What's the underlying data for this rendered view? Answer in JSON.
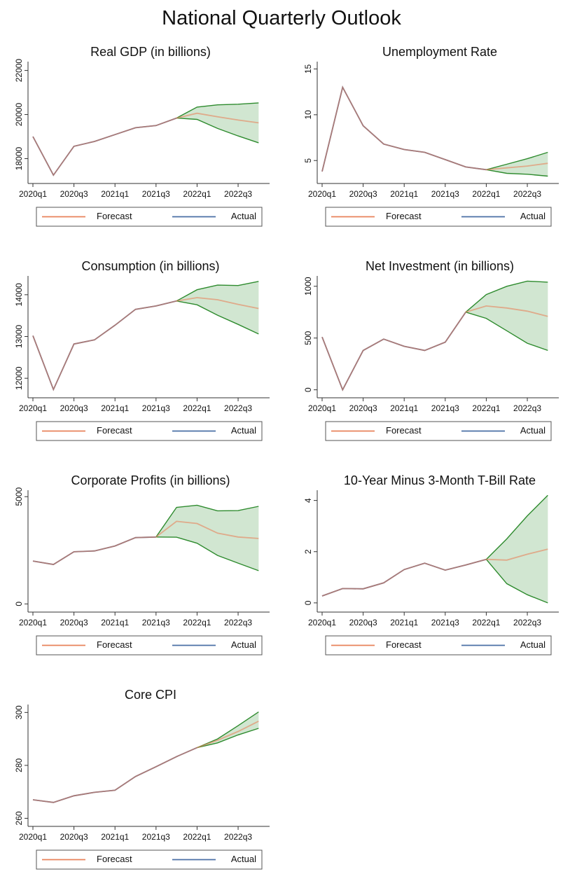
{
  "title": "National Quarterly Outlook",
  "chart_data": [
    {
      "type": "line",
      "title": "Real GDP (in billions)",
      "categories": [
        "2020q1",
        null,
        "2020q3",
        null,
        "2021q1",
        null,
        "2021q3",
        null,
        "2022q1",
        null,
        "2022q3",
        null
      ],
      "series": [
        {
          "name": "Forecast",
          "color": "#e8825a",
          "values": [
            19000,
            17250,
            18560,
            18780,
            19090,
            19400,
            19500,
            19840,
            20060,
            19900,
            19750,
            19625
          ]
        },
        {
          "name": "Actual",
          "color": "#4a6fa5",
          "values": [
            19000,
            17250,
            18560,
            18780,
            19090,
            19400,
            19500,
            19840,
            null,
            null,
            null,
            null
          ]
        }
      ],
      "band": {
        "color": "#2e8b2e",
        "upper": [
          null,
          null,
          null,
          null,
          null,
          null,
          null,
          19840,
          20340,
          20440,
          20470,
          20530
        ],
        "lower": [
          null,
          null,
          null,
          null,
          null,
          null,
          null,
          19840,
          19780,
          19370,
          19030,
          18720
        ]
      },
      "ylim": [
        17000,
        22400
      ],
      "yticks": [
        18000,
        20000,
        22000
      ],
      "legend": "bottom"
    },
    {
      "type": "line",
      "title": "Unemployment Rate",
      "categories": [
        "2020q1",
        null,
        "2020q3",
        null,
        "2021q1",
        null,
        "2021q3",
        null,
        "2022q1",
        null,
        "2022q3",
        null
      ],
      "series": [
        {
          "name": "Forecast",
          "color": "#e8825a",
          "values": [
            3.8,
            13.0,
            8.8,
            6.8,
            6.2,
            5.9,
            5.1,
            4.3,
            4.0,
            4.2,
            4.4,
            4.7
          ]
        },
        {
          "name": "Actual",
          "color": "#4a6fa5",
          "values": [
            3.8,
            13.0,
            8.8,
            6.8,
            6.2,
            5.9,
            5.1,
            4.3,
            4.0,
            null,
            null,
            null
          ]
        }
      ],
      "band": {
        "color": "#2e8b2e",
        "upper": [
          null,
          null,
          null,
          null,
          null,
          null,
          null,
          null,
          4.0,
          4.6,
          5.2,
          5.9
        ],
        "lower": [
          null,
          null,
          null,
          null,
          null,
          null,
          null,
          null,
          4.0,
          3.6,
          3.5,
          3.3
        ]
      },
      "ylim": [
        2.8,
        15.8
      ],
      "yticks": [
        5,
        10,
        15
      ],
      "legend": "bottom"
    },
    {
      "type": "line",
      "title": "Consumption (in billions)",
      "categories": [
        "2020q1",
        null,
        "2020q3",
        null,
        "2021q1",
        null,
        "2021q3",
        null,
        "2022q1",
        null,
        "2022q3",
        null
      ],
      "series": [
        {
          "name": "Forecast",
          "color": "#e8825a",
          "values": [
            13020,
            11730,
            12820,
            12920,
            13270,
            13650,
            13730,
            13850,
            13930,
            13880,
            13770,
            13670
          ]
        },
        {
          "name": "Actual",
          "color": "#4a6fa5",
          "values": [
            13020,
            11730,
            12820,
            12920,
            13270,
            13650,
            13730,
            13850,
            null,
            null,
            null,
            null
          ]
        }
      ],
      "band": {
        "color": "#2e8b2e",
        "upper": [
          null,
          null,
          null,
          null,
          null,
          null,
          null,
          13850,
          14120,
          14230,
          14220,
          14320
        ],
        "lower": [
          null,
          null,
          null,
          null,
          null,
          null,
          null,
          13850,
          13760,
          13510,
          13290,
          13060
        ]
      },
      "ylim": [
        11600,
        14450
      ],
      "yticks": [
        12000,
        13000,
        14000
      ],
      "legend": "bottom"
    },
    {
      "type": "line",
      "title": "Net Investment (in billions)",
      "categories": [
        "2020q1",
        null,
        "2020q3",
        null,
        "2021q1",
        null,
        "2021q3",
        null,
        "2022q1",
        null,
        "2022q3",
        null
      ],
      "series": [
        {
          "name": "Forecast",
          "color": "#e8825a",
          "values": [
            510,
            0,
            380,
            490,
            420,
            380,
            460,
            750,
            810,
            790,
            760,
            710
          ]
        },
        {
          "name": "Actual",
          "color": "#4a6fa5",
          "values": [
            510,
            0,
            380,
            490,
            420,
            380,
            460,
            750,
            null,
            null,
            null,
            null
          ]
        }
      ],
      "band": {
        "color": "#2e8b2e",
        "upper": [
          null,
          null,
          null,
          null,
          null,
          null,
          null,
          750,
          920,
          1000,
          1050,
          1040
        ],
        "lower": [
          null,
          null,
          null,
          null,
          null,
          null,
          null,
          750,
          690,
          570,
          450,
          380
        ]
      },
      "ylim": [
        -50,
        1100
      ],
      "yticks": [
        0,
        500,
        1000
      ],
      "legend": "bottom"
    },
    {
      "type": "line",
      "title": "Corporate Profits (in billions)",
      "categories": [
        "2020q1",
        null,
        "2020q3",
        null,
        "2021q1",
        null,
        "2021q3",
        null,
        "2022q1",
        null,
        "2022q3",
        null
      ],
      "series": [
        {
          "name": "Forecast",
          "color": "#e8825a",
          "values": [
            2000,
            1840,
            2430,
            2470,
            2700,
            3090,
            3120,
            3850,
            3750,
            3300,
            3120,
            3050
          ]
        },
        {
          "name": "Actual",
          "color": "#4a6fa5",
          "values": [
            2000,
            1840,
            2430,
            2470,
            2700,
            3090,
            3120,
            null,
            null,
            null,
            null,
            null
          ]
        }
      ],
      "band": {
        "color": "#2e8b2e",
        "upper": [
          null,
          null,
          null,
          null,
          null,
          null,
          3120,
          4500,
          4600,
          4340,
          4350,
          4550
        ],
        "lower": [
          null,
          null,
          null,
          null,
          null,
          null,
          3120,
          3110,
          2830,
          2260,
          1900,
          1550
        ]
      },
      "ylim": [
        -250,
        5300
      ],
      "yticks": [
        0,
        5000
      ],
      "legend": "bottom"
    },
    {
      "type": "line",
      "title": "10-Year Minus 3-Month T-Bill Rate",
      "categories": [
        "2020q1",
        null,
        "2020q3",
        null,
        "2021q1",
        null,
        "2021q3",
        null,
        "2022q1",
        null,
        "2022q3",
        null
      ],
      "series": [
        {
          "name": "Forecast",
          "color": "#e8825a",
          "values": [
            0.27,
            0.56,
            0.55,
            0.78,
            1.3,
            1.55,
            1.28,
            1.48,
            1.7,
            1.67,
            1.9,
            2.1
          ]
        },
        {
          "name": "Actual",
          "color": "#4a6fa5",
          "values": [
            0.27,
            0.56,
            0.55,
            0.78,
            1.3,
            1.55,
            1.28,
            1.48,
            1.7,
            null,
            null,
            null
          ]
        }
      ],
      "band": {
        "color": "#2e8b2e",
        "upper": [
          null,
          null,
          null,
          null,
          null,
          null,
          null,
          null,
          1.7,
          2.5,
          3.4,
          4.2
        ],
        "lower": [
          null,
          null,
          null,
          null,
          null,
          null,
          null,
          null,
          1.7,
          0.75,
          0.32,
          0.0
        ]
      },
      "ylim": [
        -0.25,
        4.4
      ],
      "yticks": [
        0,
        2,
        4
      ],
      "legend": "bottom"
    },
    {
      "type": "line",
      "title": "Core CPI",
      "categories": [
        "2020q1",
        null,
        "2020q3",
        null,
        "2021q1",
        null,
        "2021q3",
        null,
        "2022q1",
        null,
        "2022q3",
        null
      ],
      "series": [
        {
          "name": "Forecast",
          "color": "#e8825a",
          "values": [
            267,
            266,
            268.5,
            269.8,
            270.6,
            275.8,
            279.5,
            283.3,
            286.7,
            289.5,
            292.8,
            296.7
          ]
        },
        {
          "name": "Actual",
          "color": "#4a6fa5",
          "values": [
            267,
            266,
            268.5,
            269.8,
            270.6,
            275.8,
            279.5,
            283.3,
            286.7,
            null,
            null,
            null
          ]
        }
      ],
      "band": {
        "color": "#2e8b2e",
        "upper": [
          null,
          null,
          null,
          null,
          null,
          null,
          null,
          null,
          286.7,
          290,
          295,
          300.2
        ],
        "lower": [
          null,
          null,
          null,
          null,
          null,
          null,
          null,
          null,
          286.7,
          288.5,
          291.5,
          294
        ]
      },
      "ylim": [
        258,
        303
      ],
      "yticks": [
        260,
        280,
        300
      ],
      "legend": "bottom"
    }
  ]
}
